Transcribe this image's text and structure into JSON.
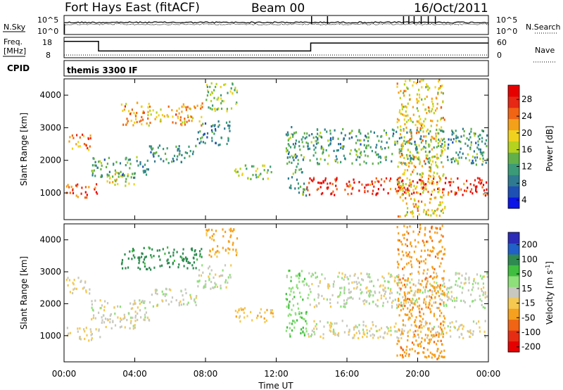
{
  "chart_data": {
    "type": "heatmap",
    "title": {
      "station": "Fort Hays East (fitACF)",
      "beam": "Beam 00",
      "date": "16/Oct/2011"
    },
    "xlabel": "Time UT",
    "x_tick_labels": [
      "00:00",
      "04:00",
      "08:00",
      "12:00",
      "16:00",
      "20:00",
      "00:00"
    ],
    "x_range_hours": [
      0,
      24
    ],
    "top_panels": {
      "noise": {
        "left_label": "N.Sky",
        "right_label": "N.Search",
        "left_ticks": [
          "10^5",
          "10^0"
        ],
        "right_ticks": [
          "10^5",
          "10^0"
        ],
        "n_sky_level": 3.9,
        "n_search_level": 3.3,
        "spike_hours": [
          14.0,
          14.9,
          19.2,
          19.5,
          19.8,
          20.2,
          20.6,
          21.0
        ]
      },
      "frequency": {
        "left_label": "Freq.",
        "left_unit": "[MHz]",
        "right_label": "Nave",
        "left_ticks": [
          "18",
          "8"
        ],
        "right_ticks": [
          "60",
          "0"
        ],
        "left_range": [
          8,
          18
        ],
        "right_range": [
          0,
          60
        ],
        "freq_steps": [
          {
            "from": 0.0,
            "to": 1.95,
            "value": 16.0
          },
          {
            "from": 1.95,
            "to": 13.95,
            "value": 11.3
          },
          {
            "from": 13.95,
            "to": 24.0,
            "value": 15.2
          }
        ],
        "nave_level": 8
      },
      "cpid": {
        "label": "CPID",
        "value": "themis 3300 IF"
      }
    },
    "panels": [
      {
        "name": "power",
        "ylabel": "Slant Range [km]",
        "y_ticks": [
          1000,
          2000,
          3000,
          4000
        ],
        "ylim": [
          180,
          4500
        ],
        "colorbar": {
          "label": "Power [dB]",
          "ticks": [
            "28",
            "24",
            "20",
            "16",
            "12",
            "8",
            "4"
          ],
          "range": [
            0,
            30
          ],
          "colors": [
            "#0a14e6",
            "#1e50b4",
            "#2f7a90",
            "#3b9a78",
            "#62b049",
            "#b4d21e",
            "#f0d21e",
            "#f5a019",
            "#f06414",
            "#e62814",
            "#e60000"
          ]
        }
      },
      {
        "name": "velocity",
        "ylabel": "Slant Range [km]",
        "y_ticks": [
          1000,
          2000,
          3000,
          4000
        ],
        "ylim": [
          180,
          4500
        ],
        "colorbar": {
          "label": "Velocity [m s^-1]",
          "ticks": [
            "200",
            "100",
            "50",
            "15",
            "-15",
            "-50",
            "-100",
            "-200"
          ],
          "colors": [
            "#2b2bb8",
            "#2060c8",
            "#2e8a50",
            "#3fbe3f",
            "#8ee07a",
            "#c8c8c0",
            "#f5c850",
            "#f5a01e",
            "#f06414",
            "#e62d14",
            "#e60000"
          ]
        }
      }
    ],
    "echo_regions": [
      {
        "t0": 0.1,
        "t1": 2.0,
        "r0": 880,
        "r1": 1300,
        "power": 24,
        "vel": -10
      },
      {
        "t0": 2.0,
        "t1": 4.0,
        "r0": 1250,
        "r1": 1650,
        "power": 16,
        "vel": -5
      },
      {
        "t0": 0.1,
        "t1": 1.5,
        "r0": 2350,
        "r1": 2850,
        "power": 22,
        "vel": -15
      },
      {
        "t0": 1.5,
        "t1": 4.8,
        "r0": 1500,
        "r1": 2150,
        "power": 10,
        "vel": 0
      },
      {
        "t0": 4.8,
        "t1": 7.5,
        "r0": 1950,
        "r1": 2500,
        "power": 9,
        "vel": 0
      },
      {
        "t0": 7.5,
        "t1": 9.4,
        "r0": 2500,
        "r1": 3250,
        "power": 8,
        "vel": 5
      },
      {
        "t0": 3.2,
        "t1": 7.8,
        "r0": 3100,
        "r1": 3800,
        "power": 20,
        "vel": 120
      },
      {
        "t0": 8.0,
        "t1": 9.8,
        "r0": 3500,
        "r1": 4400,
        "power": 14,
        "vel": -60
      },
      {
        "t0": 9.6,
        "t1": 11.8,
        "r0": 1450,
        "r1": 1900,
        "power": 14,
        "vel": -40
      },
      {
        "t0": 12.5,
        "t1": 13.7,
        "r0": 950,
        "r1": 3100,
        "power": 10,
        "vel": 40
      },
      {
        "t0": 13.7,
        "t1": 23.9,
        "r0": 950,
        "r1": 1500,
        "power": 26,
        "vel": -5
      },
      {
        "t0": 13.7,
        "t1": 23.9,
        "r0": 1900,
        "r1": 3000,
        "power": 10,
        "vel": 0
      },
      {
        "t0": 18.8,
        "t1": 21.5,
        "r0": 300,
        "r1": 4500,
        "power": 18,
        "vel": -80
      }
    ]
  }
}
